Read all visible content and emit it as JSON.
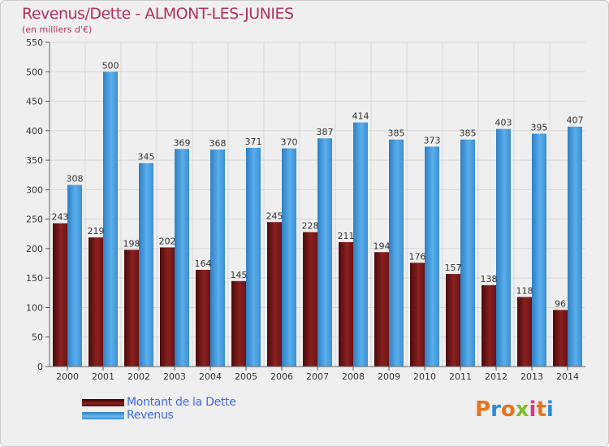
{
  "header": {
    "title": "Revenus/Dette - ALMONT-LES-JUNIES",
    "subtitle": "(en milliers d'€)"
  },
  "logo": {
    "text": "Proxiti",
    "colors": [
      "#e8731b",
      "#2e8bd8",
      "#e8731b",
      "#7cbf2f",
      "#d63a8a",
      "#e8731b",
      "#2e8bd8"
    ]
  },
  "colors": {
    "dette": "#7a1a1a",
    "revenus": "#4a9ee0",
    "axis_text": "#333333",
    "grid": "#d8d8d8"
  },
  "chart_data": {
    "type": "bar",
    "categories": [
      "2000",
      "2001",
      "2002",
      "2003",
      "2004",
      "2005",
      "2006",
      "2007",
      "2008",
      "2009",
      "2010",
      "2011",
      "2012",
      "2013",
      "2014"
    ],
    "series": [
      {
        "name": "Montant de la Dette",
        "values": [
          243,
          219,
          198,
          202,
          164,
          145,
          245,
          228,
          211,
          194,
          176,
          157,
          138,
          118,
          96
        ]
      },
      {
        "name": "Revenus",
        "values": [
          308,
          500,
          345,
          369,
          368,
          371,
          370,
          387,
          414,
          385,
          373,
          385,
          403,
          395,
          407
        ]
      }
    ],
    "y_ticks": [
      0,
      50,
      100,
      150,
      200,
      250,
      300,
      350,
      400,
      450,
      500,
      550
    ],
    "ylim": [
      0,
      550
    ],
    "legend_position": "bottom-left",
    "grid": true
  }
}
